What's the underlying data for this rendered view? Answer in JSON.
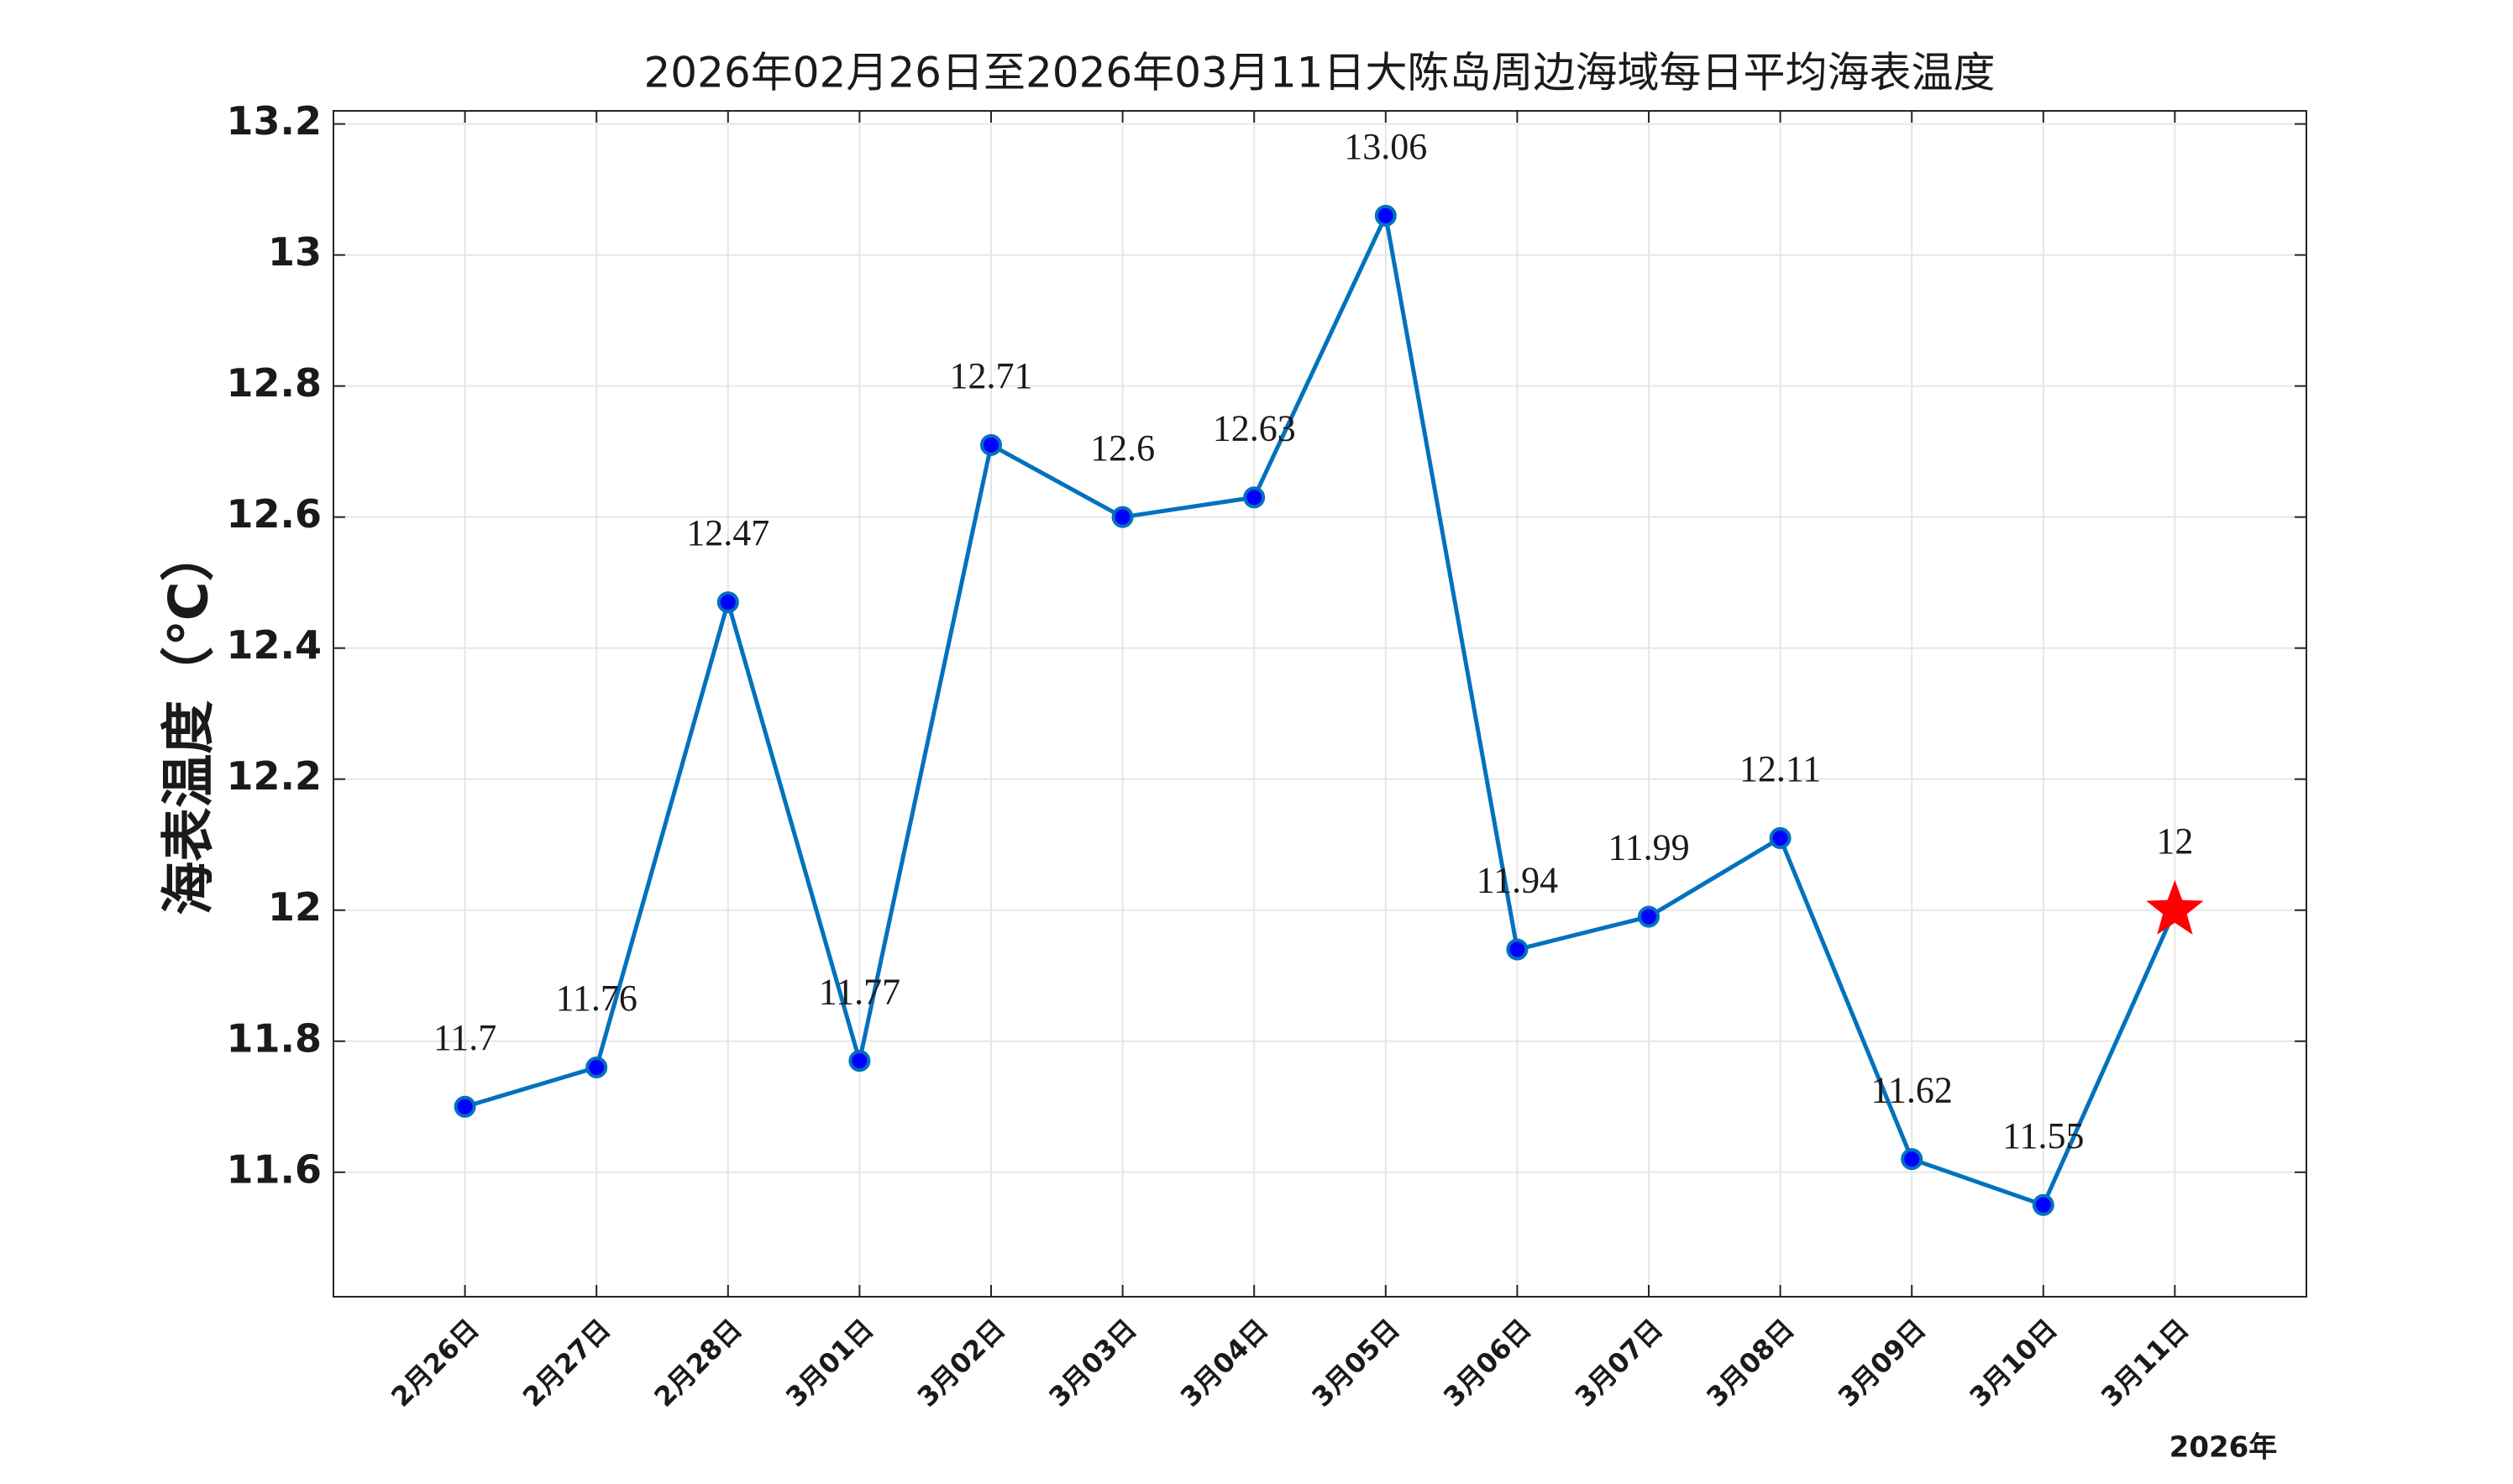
{
  "chart_data": {
    "type": "line",
    "title": "2026年02月26日至2026年03月11日大陈岛周边海域每日平均海表温度",
    "y_label": "海表温度（℃）",
    "x_label": "2026年",
    "categories": [
      "2月26日",
      "2月27日",
      "2月28日",
      "3月01日",
      "3月02日",
      "3月03日",
      "3月04日",
      "3月05日",
      "3月06日",
      "3月07日",
      "3月08日",
      "3月09日",
      "3月10日",
      "3月11日"
    ],
    "series": [
      {
        "color": "#0072bd",
        "marker_color": "#0000ff",
        "star_color": "#ff0000",
        "values": [
          11.7,
          11.76,
          12.47,
          11.77,
          12.71,
          12.6,
          12.63,
          13.06,
          11.94,
          11.99,
          12.11,
          11.62,
          11.55,
          12
        ]
      }
    ],
    "ylim": [
      11.41,
      13.22
    ],
    "yticks": [
      11.6,
      11.8,
      12,
      12.2,
      12.4,
      12.6,
      12.8,
      13,
      13.2
    ],
    "grid": true
  }
}
